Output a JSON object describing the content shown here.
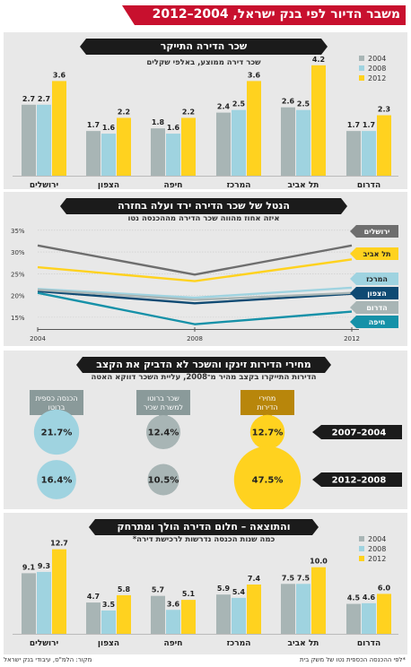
{
  "title": "משבר הדיור לפי בנק ישראל, 2004–2012",
  "colors": {
    "y2004": "#a8b5b5",
    "y2008": "#9fd3e0",
    "y2012": "#ffd21f",
    "red": "#c8102e",
    "panel": "#e8e8e8"
  },
  "section1": {
    "header": "שכר הדירה התייקר",
    "subtitle": "שכר דירה ממוצע, באלפי שקלים"
  },
  "section2": {
    "header": "הנטל של שכר הדירה ירד ועלה בחזרה",
    "subtitle": "איזה אחוז מהווה שכר הדירה מההכנסה נטו"
  },
  "section3": {
    "header": "מחירי הדירות זינקו והשכר לא הדביק את הקצב",
    "subtitle": "הדירות התייקרו בקצב מהיר מ־2008, עליית השכר דווקא האטה",
    "labels": [
      "מחירי הדירות",
      "שכר ברוטו למשרת שכיר",
      "הכנסה כספית ברוטו"
    ],
    "periods": [
      "2007–2004",
      "2012–2008"
    ],
    "period1": [
      "12.7%",
      "12.4%",
      "21.7%"
    ],
    "period2": [
      "47.5%",
      "10.5%",
      "16.4%"
    ],
    "period1_values": [
      12.7,
      12.4,
      21.7
    ],
    "period2_values": [
      47.5,
      10.5,
      16.4
    ]
  },
  "section4": {
    "header": "והתוצאה – חלום הדירה הולך ומתרחק",
    "subtitle": "כמה שנות הכנסה נדרשות לרכישת דירה*"
  },
  "footnote": "*לפי ההכנסה הכספית נטו של משק בית",
  "source": "מקור: הלמ\"ס, עיבודי בנק ישראל",
  "chart_data": [
    {
      "type": "bar",
      "title": "שכר הדירה התייקר",
      "subtitle": "שכר דירה ממוצע, באלפי שקלים",
      "categories": [
        "ירושלים",
        "הצפון",
        "חיפה",
        "המרכז",
        "תל אביב",
        "הדרום"
      ],
      "series": [
        {
          "name": "2004",
          "values": [
            2.7,
            1.7,
            1.8,
            2.4,
            2.6,
            1.7
          ]
        },
        {
          "name": "2008",
          "values": [
            2.7,
            1.6,
            1.6,
            2.5,
            2.5,
            1.7
          ]
        },
        {
          "name": "2012",
          "values": [
            3.6,
            2.2,
            2.2,
            3.6,
            4.2,
            2.3
          ]
        }
      ],
      "labels": [
        [
          "2.7",
          "1.7",
          "1.8",
          "2.4",
          "2.6",
          "1.7"
        ],
        [
          "2.7",
          "1.6",
          "1.6",
          "2.5",
          "2.5",
          "1.7"
        ],
        [
          "3.6",
          "2.2",
          "2.2",
          "3.6",
          "4.2",
          "2.3"
        ]
      ],
      "ylim": [
        0,
        4.5
      ],
      "legend": "top-right"
    },
    {
      "type": "line",
      "title": "הנטל של שכר הדירה ירד ועלה בחזרה",
      "subtitle": "איזה אחוז מהווה שכר הדירה מההכנסה נטו",
      "x": [
        2004,
        2008,
        2012
      ],
      "x_tick_labels": [
        "2004",
        "2008",
        "2012"
      ],
      "y_tick_labels": [
        "15%",
        "20%",
        "25%",
        "30%",
        "35%"
      ],
      "ylim": [
        12.5,
        36
      ],
      "series": [
        {
          "name": "ירושלים",
          "values": [
            31.5,
            24.8,
            31.5
          ],
          "color": "#6e6e6e"
        },
        {
          "name": "תל אביב",
          "values": [
            26.5,
            23.3,
            28.3
          ],
          "color": "#ffd21f"
        },
        {
          "name": "המרכז",
          "values": [
            21.5,
            19.5,
            21.8
          ],
          "color": "#9fd3e0"
        },
        {
          "name": "הצפון",
          "values": [
            21.0,
            18.2,
            20.4
          ],
          "color": "#0f4a73"
        },
        {
          "name": "הדרום",
          "values": [
            21.3,
            19.0,
            20.6
          ],
          "color": "#a8b5b5"
        },
        {
          "name": "חיפה",
          "values": [
            20.6,
            13.4,
            16.3
          ],
          "color": "#1691a8"
        }
      ]
    },
    {
      "type": "bar",
      "title": "והתוצאה – חלום הדירה הולך ומתרחק",
      "subtitle": "כמה שנות הכנסה נדרשות לרכישת דירה*",
      "categories": [
        "ירושלים",
        "הצפון",
        "חיפה",
        "המרכז",
        "תל אביב",
        "הדרום"
      ],
      "series": [
        {
          "name": "2004",
          "values": [
            9.1,
            4.7,
            5.7,
            5.9,
            7.5,
            4.5
          ]
        },
        {
          "name": "2008",
          "values": [
            9.3,
            3.5,
            3.6,
            5.4,
            7.5,
            4.6
          ]
        },
        {
          "name": "2012",
          "values": [
            12.7,
            5.8,
            5.1,
            7.4,
            10.0,
            6.0
          ]
        }
      ],
      "labels": [
        [
          "9.1",
          "4.7",
          "5.7",
          "5.9",
          "7.5",
          "4.5"
        ],
        [
          "9.3",
          "3.5",
          "3.6",
          "5.4",
          "7.5",
          "4.6"
        ],
        [
          "12.7",
          "5.8",
          "5.1",
          "7.4",
          "10.0",
          "6.0"
        ]
      ],
      "ylim": [
        0,
        14
      ],
      "legend": "top-right"
    }
  ]
}
